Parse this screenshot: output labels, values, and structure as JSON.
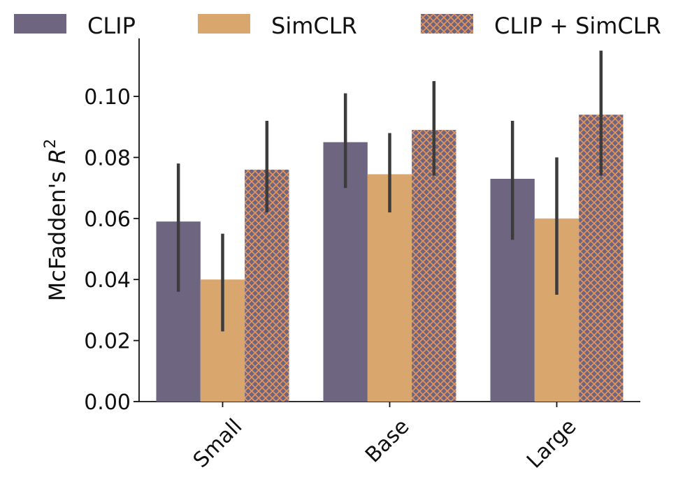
{
  "chart_data": {
    "type": "bar",
    "categories": [
      "Small",
      "Base",
      "Large"
    ],
    "series": [
      {
        "name": "CLIP",
        "values": [
          0.059,
          0.085,
          0.073
        ],
        "err_low": [
          0.036,
          0.07,
          0.053
        ],
        "err_high": [
          0.078,
          0.101,
          0.092
        ],
        "color": "#6e6580",
        "pattern": "solid"
      },
      {
        "name": "SimCLR",
        "values": [
          0.04,
          0.0745,
          0.06
        ],
        "err_low": [
          0.023,
          0.062,
          0.035
        ],
        "err_high": [
          0.055,
          0.088,
          0.08
        ],
        "color": "#d9a66e",
        "pattern": "solid"
      },
      {
        "name": "CLIP + SimCLR",
        "values": [
          0.076,
          0.089,
          0.094
        ],
        "err_low": [
          0.062,
          0.074,
          0.074
        ],
        "err_high": [
          0.092,
          0.105,
          0.115
        ],
        "color": "#6e6580",
        "hatch_color": "#e8955a",
        "pattern": "crosshatch"
      }
    ],
    "ylabel_prefix": "McFadden's ",
    "ylabel_symbol": "R",
    "ylabel_superscript": "2",
    "xlabel": "",
    "ylim": [
      0,
      0.119
    ],
    "yticks": [
      0.0,
      0.02,
      0.04,
      0.06,
      0.08,
      0.1
    ],
    "ytick_labels": [
      "0.00",
      "0.02",
      "0.04",
      "0.06",
      "0.08",
      "0.10"
    ],
    "legend_position": "top",
    "grid": false
  }
}
